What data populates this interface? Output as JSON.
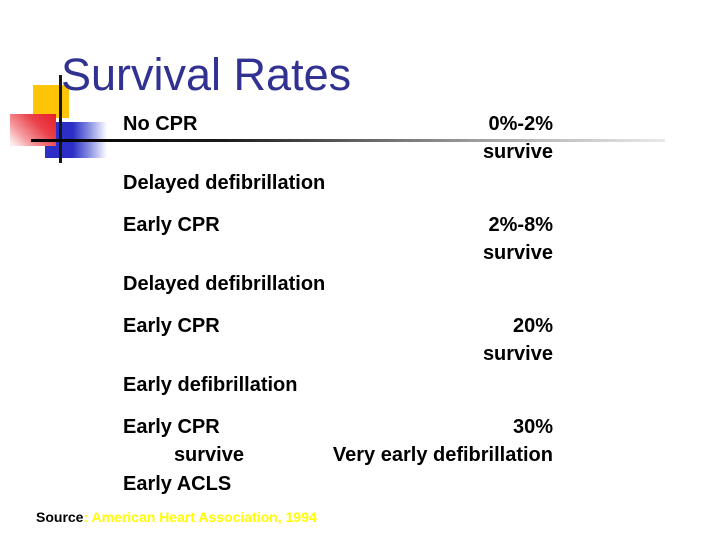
{
  "title": "Survival Rates",
  "rows": [
    {
      "step1": "No CPR",
      "rate": "0%-2%",
      "rate_sub": "survive",
      "step2": "Delayed defibrillation"
    },
    {
      "step1": "Early CPR",
      "rate": "2%-8%",
      "rate_sub": "survive",
      "step2": "Delayed defibrillation"
    },
    {
      "step1": "Early CPR",
      "rate": "20%",
      "rate_sub": "survive",
      "step2": "Early defibrillation"
    },
    {
      "step1": "Early CPR",
      "rate": "30%",
      "survive_label": "survive",
      "note": "Very early defibrillation",
      "step2": "Early ACLS"
    }
  ],
  "source": {
    "label": "Source",
    "citation": ": American Heart Association, 1994"
  },
  "colors": {
    "title_text": "#313192",
    "body_text": "#000000",
    "accent_yellow": "#fdc408",
    "accent_red": "#e71d29",
    "accent_blue": "#2b2fc5",
    "source_citation_yellow": "#ffff00",
    "rule_gradient_start": "#000000",
    "rule_gradient_end": "#e9e9e9"
  }
}
